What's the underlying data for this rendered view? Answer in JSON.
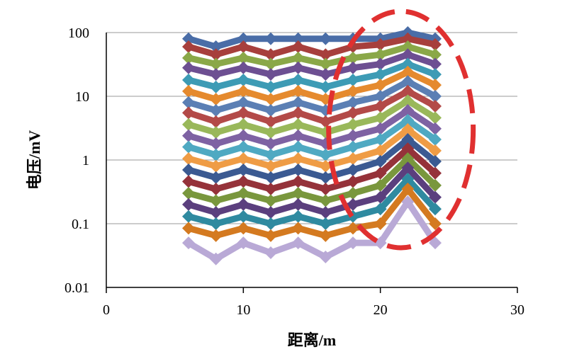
{
  "chart_data": {
    "type": "line",
    "title": "",
    "xlabel": "距离/m",
    "ylabel": "电压/mV",
    "xlim": [
      0,
      30
    ],
    "ylim": [
      0.01,
      100
    ],
    "yscale": "log",
    "grid": "horizontal",
    "legend": "none",
    "x_ticks": [
      "0",
      "10",
      "20",
      "30"
    ],
    "y_ticks": [
      "0.01",
      "0.1",
      "1",
      "10",
      "100"
    ],
    "x": [
      6,
      8,
      10,
      12,
      14,
      16,
      18,
      20,
      22,
      24
    ],
    "series": [
      {
        "values": [
          80,
          60,
          80,
          80,
          80,
          80,
          80,
          80,
          100,
          80
        ]
      },
      {
        "values": [
          60,
          45,
          60,
          45,
          60,
          45,
          60,
          65,
          80,
          65
        ]
      },
      {
        "values": [
          40,
          32,
          40,
          32,
          40,
          32,
          40,
          45,
          60,
          45
        ]
      },
      {
        "values": [
          28,
          22,
          28,
          22,
          28,
          22,
          28,
          32,
          45,
          32
        ]
      },
      {
        "values": [
          18,
          14,
          18,
          14,
          18,
          14,
          18,
          22,
          32,
          22
        ]
      },
      {
        "values": [
          12,
          9,
          12,
          9,
          12,
          9,
          12,
          15,
          24,
          15
        ]
      },
      {
        "values": [
          8,
          6,
          8,
          6,
          8,
          6,
          8,
          10,
          17,
          10
        ]
      },
      {
        "values": [
          5.5,
          4,
          5.5,
          4,
          5.5,
          4,
          5.5,
          7,
          12,
          7
        ]
      },
      {
        "values": [
          3.6,
          2.7,
          3.6,
          2.7,
          3.6,
          2.7,
          3.6,
          4.6,
          8.5,
          4.6
        ]
      },
      {
        "values": [
          2.4,
          1.8,
          2.4,
          1.8,
          2.4,
          1.8,
          2.4,
          3.1,
          6,
          3.1
        ]
      },
      {
        "values": [
          1.6,
          1.2,
          1.6,
          1.2,
          1.6,
          1.2,
          1.6,
          2.1,
          4.2,
          2.1
        ]
      },
      {
        "values": [
          1.05,
          0.8,
          1.05,
          0.8,
          1.05,
          0.8,
          1.05,
          1.4,
          3,
          1.4
        ]
      },
      {
        "values": [
          0.7,
          0.53,
          0.7,
          0.53,
          0.7,
          0.53,
          0.7,
          0.95,
          2.1,
          0.95
        ]
      },
      {
        "values": [
          0.46,
          0.35,
          0.46,
          0.35,
          0.46,
          0.35,
          0.46,
          0.62,
          1.5,
          0.62
        ]
      },
      {
        "values": [
          0.3,
          0.23,
          0.3,
          0.23,
          0.3,
          0.23,
          0.3,
          0.4,
          1.05,
          0.4
        ]
      },
      {
        "values": [
          0.2,
          0.15,
          0.2,
          0.15,
          0.2,
          0.15,
          0.2,
          0.26,
          0.75,
          0.26
        ]
      },
      {
        "values": [
          0.13,
          0.1,
          0.13,
          0.1,
          0.13,
          0.1,
          0.13,
          0.17,
          0.5,
          0.17
        ]
      },
      {
        "values": [
          0.085,
          0.065,
          0.085,
          0.065,
          0.085,
          0.065,
          0.085,
          0.1,
          0.35,
          0.1
        ]
      },
      {
        "values": [
          0.05,
          0.028,
          0.05,
          0.035,
          0.05,
          0.03,
          0.05,
          0.05,
          0.22,
          0.05
        ]
      }
    ],
    "annotation": "red dashed ellipse highlighting x≈20–25"
  },
  "colors": {
    "palette": [
      "#4a6da7",
      "#a73f3c",
      "#8aa848",
      "#6d4f92",
      "#3d9bb5",
      "#e58a2e",
      "#5b7fb4",
      "#b34a48",
      "#99b85a",
      "#7e62a3",
      "#4fa9c2",
      "#ef9c45",
      "#3b5a92",
      "#95323a",
      "#79973d",
      "#5b3f7e",
      "#2f8aa0",
      "#d47a20",
      "#b9a9d6"
    ],
    "annotation": "#e03030",
    "grid": "#999999",
    "axis": "#000000"
  }
}
